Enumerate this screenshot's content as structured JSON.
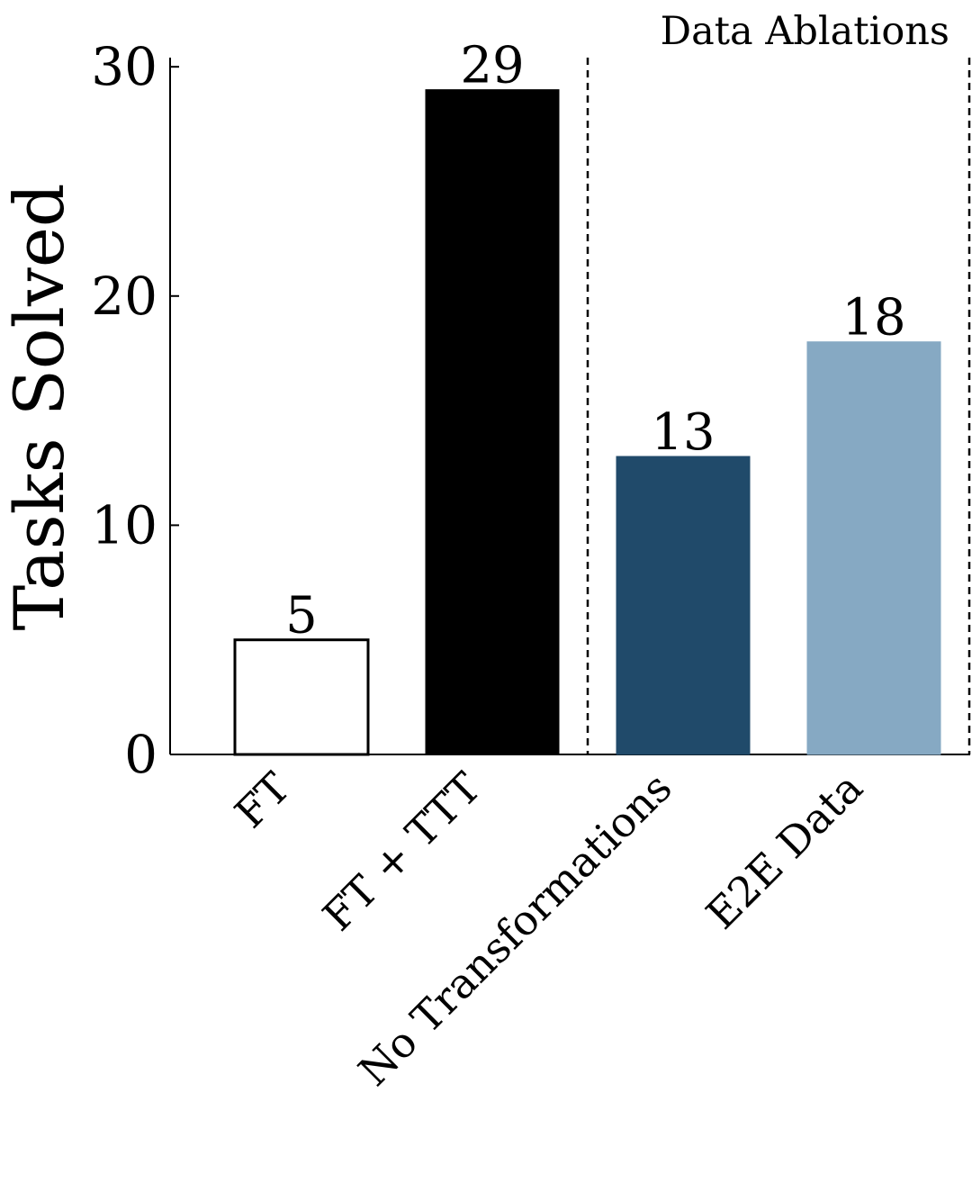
{
  "chart_data": {
    "type": "bar",
    "title": "",
    "xlabel": "",
    "ylabel": "Tasks Solved",
    "ylim": [
      0,
      30.4
    ],
    "yticks": [
      0,
      10,
      20,
      30
    ],
    "grid": false,
    "annotation": "Data Ablations",
    "categories": [
      "FT",
      "FT + TTT",
      "No Transformations",
      "E2E Data"
    ],
    "values": [
      5,
      29,
      13,
      18
    ],
    "data_labels": [
      "5",
      "29",
      "13",
      "18"
    ],
    "bar_fills": [
      "#ffffff",
      "#000000",
      "#204a6a",
      "#86a9c3"
    ],
    "bar_edges": [
      "#000000",
      "#000000",
      "#204a6a",
      "#86a9c3"
    ],
    "separators_after_category_index": [
      1,
      3
    ]
  }
}
